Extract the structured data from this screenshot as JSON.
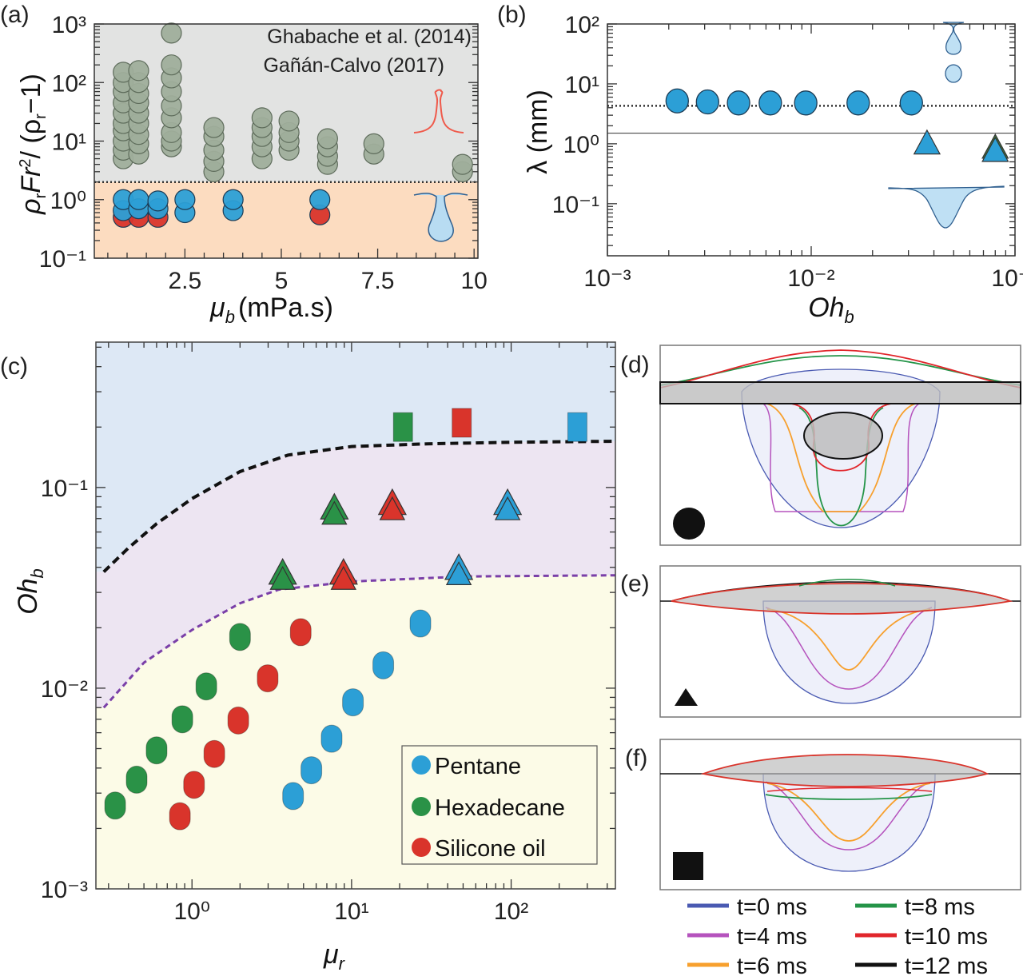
{
  "panel_labels": {
    "a": "(a)",
    "b": "(b)",
    "c": "(c)",
    "d": "(d)",
    "e": "(e)",
    "f": "(f)"
  },
  "colors": {
    "gray_region": "#e2e3e2",
    "orange_region": "#fcdcc0",
    "gray_point": "#9fae9b",
    "pentane": "#2c9fd6",
    "hexadecane": "#2a9247",
    "silicone": "#d9342b",
    "c_top": "#dde8f5",
    "c_mid": "#ede5f2",
    "c_bottom": "#fcfbe7"
  },
  "chart_data": [
    {
      "id": "a",
      "type": "scatter",
      "xlabel_parts": [
        "μ",
        "b",
        "(mPa.s)"
      ],
      "ylabel_parts": [
        "ρ",
        "r",
        "Fr",
        "2",
        "/ (ρ",
        "r",
        "−1)"
      ],
      "xscale": "linear",
      "yscale": "log",
      "xlim": [
        0.15,
        10.1
      ],
      "ylim": [
        0.1,
        1000
      ],
      "xticks": [
        {
          "v": 2.5,
          "label": "2.5"
        },
        {
          "v": 5,
          "label": "5"
        },
        {
          "v": 7.5,
          "label": "7.5"
        },
        {
          "v": 10,
          "label": "10"
        }
      ],
      "yticks": [
        {
          "v": 0.1,
          "label": "10⁻¹"
        },
        {
          "v": 1,
          "label": "10⁰"
        },
        {
          "v": 10,
          "label": "10¹"
        },
        {
          "v": 100,
          "label": "10²"
        },
        {
          "v": 1000,
          "label": "10³"
        }
      ],
      "annotations": [
        "Ghabache et al. (2014)",
        "Gañán-Calvo (2017)"
      ],
      "threshold": 2,
      "series": [
        {
          "name": "literature",
          "color": "#9fae9b",
          "points": [
            [
              0.9,
              5
            ],
            [
              0.9,
              7
            ],
            [
              0.9,
              10
            ],
            [
              0.9,
              15
            ],
            [
              0.9,
              20
            ],
            [
              0.9,
              30
            ],
            [
              0.9,
              45
            ],
            [
              0.9,
              70
            ],
            [
              0.9,
              100
            ],
            [
              0.9,
              150
            ],
            [
              1.3,
              6
            ],
            [
              1.3,
              9
            ],
            [
              1.3,
              13
            ],
            [
              1.3,
              20
            ],
            [
              1.3,
              30
            ],
            [
              1.3,
              45
            ],
            [
              1.3,
              65
            ],
            [
              1.3,
              100
            ],
            [
              1.3,
              160
            ],
            [
              2.15,
              8
            ],
            [
              2.15,
              10
            ],
            [
              2.15,
              14
            ],
            [
              2.15,
              25
            ],
            [
              2.15,
              40
            ],
            [
              2.15,
              70
            ],
            [
              2.15,
              120
            ],
            [
              2.15,
              200
            ],
            [
              2.15,
              700
            ],
            [
              3.25,
              3
            ],
            [
              3.25,
              4.5
            ],
            [
              3.25,
              7
            ],
            [
              3.25,
              12
            ],
            [
              3.25,
              17
            ],
            [
              4.5,
              5
            ],
            [
              4.5,
              8
            ],
            [
              4.5,
              12
            ],
            [
              4.5,
              17
            ],
            [
              4.5,
              25
            ],
            [
              5.2,
              7
            ],
            [
              5.2,
              10
            ],
            [
              5.2,
              14
            ],
            [
              5.2,
              22
            ],
            [
              6.2,
              4
            ],
            [
              6.2,
              5.5
            ],
            [
              6.2,
              8
            ],
            [
              6.2,
              11
            ],
            [
              7.4,
              6
            ],
            [
              7.4,
              9
            ],
            [
              9.7,
              3
            ],
            [
              9.7,
              4
            ]
          ]
        },
        {
          "name": "silicone",
          "color": "#d9342b",
          "points": [
            [
              0.9,
              0.5
            ],
            [
              1.3,
              0.5
            ],
            [
              1.8,
              0.5
            ],
            [
              6.0,
              0.55
            ]
          ]
        },
        {
          "name": "pentane",
          "color": "#2c9fd6",
          "points": [
            [
              0.9,
              0.65
            ],
            [
              0.9,
              1.0
            ],
            [
              1.3,
              0.7
            ],
            [
              1.3,
              1.0
            ],
            [
              1.8,
              0.7
            ],
            [
              1.8,
              0.95
            ],
            [
              2.5,
              0.6
            ],
            [
              2.5,
              1.0
            ],
            [
              3.75,
              0.65
            ],
            [
              3.75,
              1.0
            ],
            [
              6.0,
              1.0
            ]
          ]
        }
      ]
    },
    {
      "id": "b",
      "type": "scatter",
      "xlabel_parts": [
        "Oh",
        "b"
      ],
      "ylabel": "λ (mm)",
      "xscale": "log",
      "yscale": "log",
      "xlim": [
        0.001,
        0.1
      ],
      "ylim": [
        0.0135,
        100
      ],
      "xticks": [
        {
          "v": 0.001,
          "label": "10⁻³"
        },
        {
          "v": 0.01,
          "label": "10⁻²"
        },
        {
          "v": 0.1,
          "label": "10⁻¹"
        }
      ],
      "yticks": [
        {
          "v": 0.1,
          "label": "10⁻¹"
        },
        {
          "v": 1,
          "label": "10⁰"
        },
        {
          "v": 10,
          "label": "10¹"
        },
        {
          "v": 100,
          "label": "10²"
        }
      ],
      "hlines": [
        {
          "y": 4.3,
          "style": "dotted"
        },
        {
          "y": 1.5,
          "style": "solid"
        }
      ],
      "series": [
        {
          "name": "circles",
          "marker": "circle",
          "color": "#2c9fd6",
          "points": [
            [
              0.0022,
              5.2
            ],
            [
              0.0031,
              5.0
            ],
            [
              0.0044,
              4.8
            ],
            [
              0.0063,
              4.8
            ],
            [
              0.0094,
              4.8
            ],
            [
              0.017,
              4.8
            ],
            [
              0.031,
              4.8
            ]
          ]
        },
        {
          "name": "triangles-green",
          "marker": "triangle",
          "color": "#3d7d3e",
          "points": [
            [
              0.08,
              0.85
            ]
          ]
        },
        {
          "name": "triangles",
          "marker": "triangle",
          "color": "#2c9fd6",
          "points": [
            [
              0.037,
              1.0
            ],
            [
              0.08,
              0.75
            ]
          ]
        }
      ]
    },
    {
      "id": "c",
      "type": "scatter",
      "xlabel_parts": [
        "μ",
        "r"
      ],
      "ylabel_parts": [
        "Oh",
        "b"
      ],
      "xscale": "log",
      "yscale": "log",
      "xlim": [
        0.25,
        450
      ],
      "ylim": [
        0.001,
        0.53
      ],
      "xticks": [
        {
          "v": 1,
          "label": "10⁰"
        },
        {
          "v": 10,
          "label": "10¹"
        },
        {
          "v": 100,
          "label": "10²"
        }
      ],
      "yticks": [
        {
          "v": 0.001,
          "label": "10⁻³"
        },
        {
          "v": 0.01,
          "label": "10⁻²"
        },
        {
          "v": 0.1,
          "label": "10⁻¹"
        }
      ],
      "legend": [
        {
          "label": "Pentane",
          "color": "#2c9fd6"
        },
        {
          "label": "Hexadecane",
          "color": "#2a9247"
        },
        {
          "label": "Silicone oil",
          "color": "#d9342b"
        }
      ],
      "legend_position": "bottom-right",
      "curves": [
        {
          "name": "upper-boundary",
          "style": "dashed",
          "color": "#111111",
          "points": [
            [
              0.28,
              0.038
            ],
            [
              0.4,
              0.05
            ],
            [
              0.6,
              0.066
            ],
            [
              1,
              0.088
            ],
            [
              2,
              0.12
            ],
            [
              4,
              0.145
            ],
            [
              10,
              0.16
            ],
            [
              30,
              0.165
            ],
            [
              100,
              0.168
            ],
            [
              450,
              0.17
            ]
          ]
        },
        {
          "name": "lower-boundary",
          "style": "dashed",
          "color": "#7a3fa8",
          "points": [
            [
              0.28,
              0.008
            ],
            [
              0.5,
              0.0134
            ],
            [
              1,
              0.0195
            ],
            [
              2,
              0.0265
            ],
            [
              3.5,
              0.031
            ],
            [
              10,
              0.034
            ],
            [
              50,
              0.036
            ],
            [
              450,
              0.0365
            ]
          ]
        }
      ],
      "series": [
        {
          "name": "Pentane",
          "color": "#2c9fd6",
          "points": [
            {
              "x": 4.3,
              "y": 0.0029,
              "m": "circle"
            },
            {
              "x": 5.6,
              "y": 0.0039,
              "m": "circle"
            },
            {
              "x": 7.5,
              "y": 0.0056,
              "m": "circle"
            },
            {
              "x": 10.2,
              "y": 0.0085,
              "m": "circle"
            },
            {
              "x": 15.8,
              "y": 0.013,
              "m": "circle"
            },
            {
              "x": 27,
              "y": 0.021,
              "m": "circle"
            },
            {
              "x": 47,
              "y": 0.038,
              "m": "triangle"
            },
            {
              "x": 95,
              "y": 0.08,
              "m": "triangle"
            },
            {
              "x": 260,
              "y": 0.2,
              "m": "square"
            }
          ]
        },
        {
          "name": "Hexadecane",
          "color": "#2a9247",
          "points": [
            {
              "x": 0.33,
              "y": 0.0026,
              "m": "circle"
            },
            {
              "x": 0.45,
              "y": 0.0035,
              "m": "circle"
            },
            {
              "x": 0.6,
              "y": 0.0049,
              "m": "circle"
            },
            {
              "x": 0.87,
              "y": 0.007,
              "m": "circle"
            },
            {
              "x": 1.23,
              "y": 0.0102,
              "m": "circle"
            },
            {
              "x": 2.0,
              "y": 0.018,
              "m": "circle"
            },
            {
              "x": 3.7,
              "y": 0.036,
              "m": "triangle"
            },
            {
              "x": 7.8,
              "y": 0.076,
              "m": "triangle"
            },
            {
              "x": 21,
              "y": 0.2,
              "m": "square"
            }
          ]
        },
        {
          "name": "Silicone oil",
          "color": "#d9342b",
          "points": [
            {
              "x": 0.84,
              "y": 0.0023,
              "m": "circle"
            },
            {
              "x": 1.03,
              "y": 0.0033,
              "m": "circle"
            },
            {
              "x": 1.38,
              "y": 0.0047,
              "m": "circle"
            },
            {
              "x": 1.95,
              "y": 0.0069,
              "m": "circle"
            },
            {
              "x": 2.98,
              "y": 0.0112,
              "m": "circle"
            },
            {
              "x": 4.8,
              "y": 0.019,
              "m": "circle"
            },
            {
              "x": 8.9,
              "y": 0.036,
              "m": "triangle"
            },
            {
              "x": 18,
              "y": 0.08,
              "m": "triangle"
            },
            {
              "x": 49,
              "y": 0.21,
              "m": "square"
            }
          ]
        }
      ]
    },
    {
      "id": "def",
      "type": "line",
      "legend": [
        {
          "label": "t=0 ms",
          "color": "#4a5ab2"
        },
        {
          "label": "t=8 ms",
          "color": "#249448"
        },
        {
          "label": "t=4 ms",
          "color": "#b553bd"
        },
        {
          "label": "t=10 ms",
          "color": "#e1262b"
        },
        {
          "label": "t=6 ms",
          "color": "#f7a02e"
        },
        {
          "label": "t=12 ms",
          "color": "#111111"
        }
      ]
    }
  ]
}
